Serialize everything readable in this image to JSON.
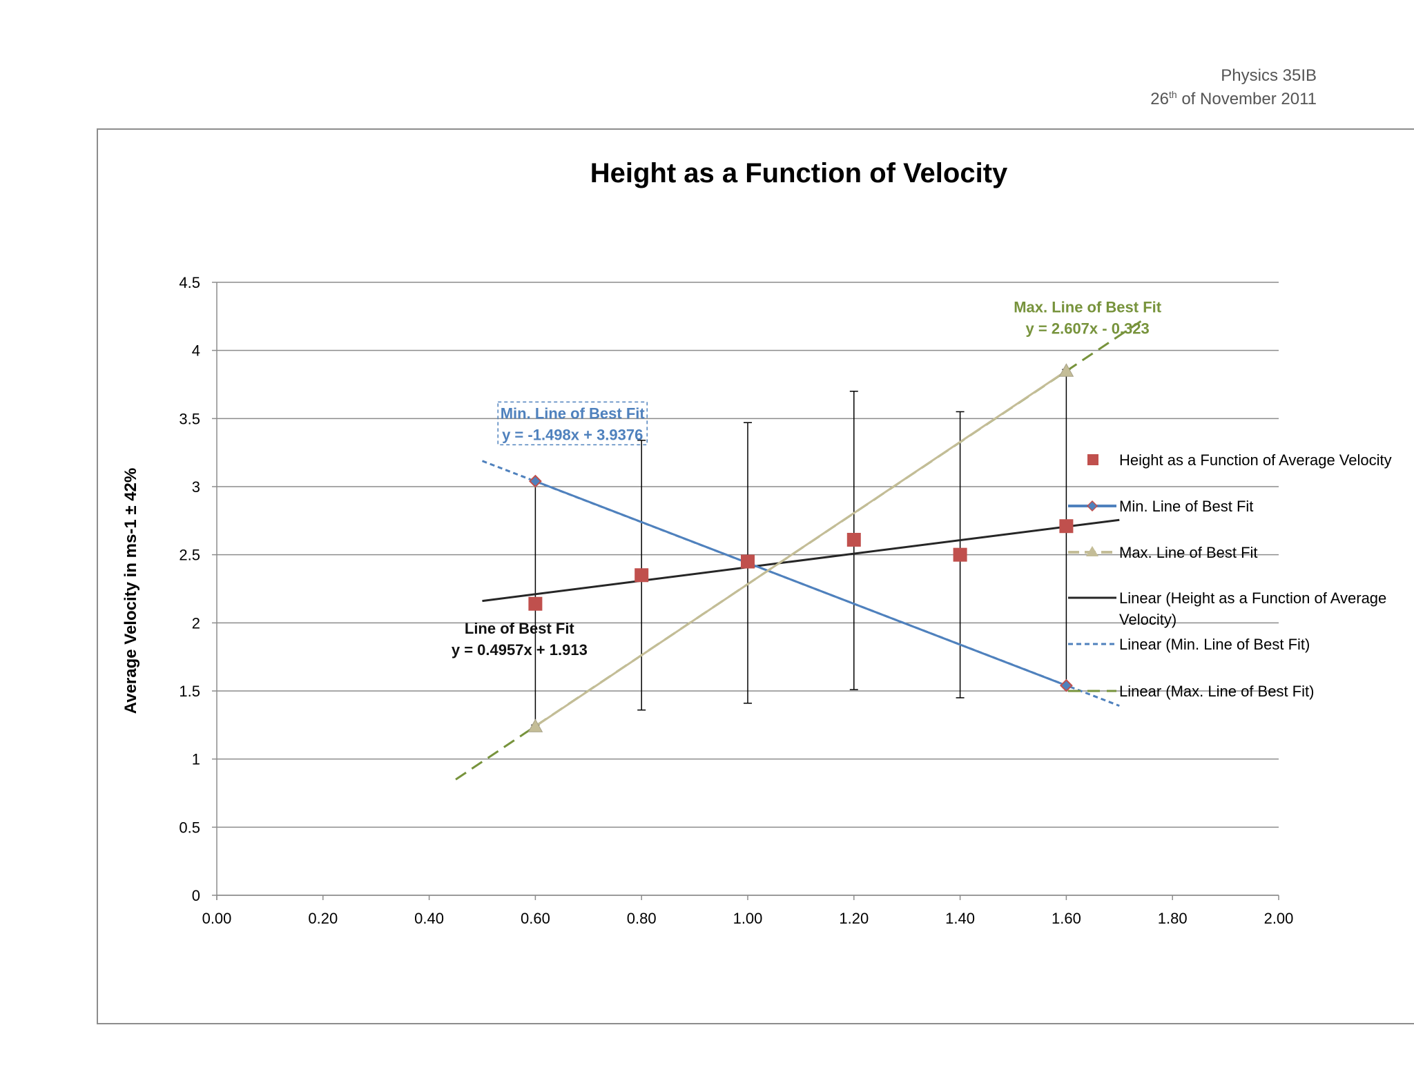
{
  "header": {
    "course": "Physics 35IB",
    "date_day": "26",
    "date_suffix": "th",
    "date_rest": " of November 2011"
  },
  "chart_data": {
    "type": "scatter",
    "title": "Height as a Function of Velocity",
    "xlabel": "",
    "ylabel": "Average Velocity in ms-1 ± 42%",
    "xlim": [
      0,
      2
    ],
    "ylim": [
      0,
      4.5
    ],
    "x_ticks": [
      0,
      0.2,
      0.4,
      0.6,
      0.8,
      1.0,
      1.2,
      1.4,
      1.6,
      1.8,
      2.0
    ],
    "x_tick_labels": [
      "0.00",
      "0.20",
      "0.40",
      "0.60",
      "0.80",
      "1.00",
      "1.20",
      "1.40",
      "1.60",
      "1.80",
      "2.00"
    ],
    "y_ticks": [
      0,
      0.5,
      1,
      1.5,
      2,
      2.5,
      3,
      3.5,
      4,
      4.5
    ],
    "y_tick_labels": [
      "0",
      "0.5",
      "1",
      "1.5",
      "2",
      "2.5",
      "3",
      "3.5",
      "4",
      "4.5"
    ],
    "grid": "horizontal",
    "legend_position": "right",
    "series": [
      {
        "name": "Height as a Function of Average Velocity",
        "kind": "markers",
        "marker": "square",
        "color": "#c0504d",
        "x": [
          0.6,
          0.8,
          1.0,
          1.2,
          1.4,
          1.6
        ],
        "y": [
          2.14,
          2.35,
          2.45,
          2.61,
          2.5,
          2.71
        ],
        "error_low": [
          1.25,
          1.36,
          1.41,
          1.51,
          1.45,
          1.55
        ],
        "error_high": [
          3.03,
          3.34,
          3.47,
          3.7,
          3.55,
          3.86
        ]
      },
      {
        "name": "Min. Line of Best Fit",
        "kind": "line-markers",
        "marker": "diamond",
        "color": "#4f81bd",
        "x": [
          0.6,
          1.6
        ],
        "y": [
          3.04,
          1.54
        ]
      },
      {
        "name": "Max. Line of Best Fit",
        "kind": "line-markers",
        "marker": "triangle",
        "color": "#c4bd97",
        "x": [
          0.6,
          1.6
        ],
        "y": [
          1.24,
          3.85
        ]
      }
    ],
    "trendlines": [
      {
        "name": "Linear (Height as a Function of Average Velocity)",
        "style": "solid",
        "color": "#262626",
        "slope": 0.4957,
        "intercept": 1.913,
        "x_range": [
          0.5,
          1.7
        ]
      },
      {
        "name": "Linear (Min. Line of Best Fit)",
        "style": "dotted",
        "color": "#4f81bd",
        "slope": -1.498,
        "intercept": 3.9376,
        "x_range": [
          0.5,
          1.7
        ]
      },
      {
        "name": "Linear (Max. Line of Best Fit)",
        "style": "dashed",
        "color": "#77933c",
        "slope": 2.607,
        "intercept": -0.323,
        "x_range": [
          0.45,
          1.75
        ]
      }
    ],
    "annotations": [
      {
        "lines": [
          "Min. Line of Best Fit",
          "y = -1.498x + 3.9376"
        ],
        "color": "#4f81bd",
        "anchor": [
          0.67,
          3.5
        ],
        "boxed": true
      },
      {
        "lines": [
          "Max. Line of Best Fit",
          "y = 2.607x - 0.323"
        ],
        "color": "#77933c",
        "anchor": [
          1.64,
          4.28
        ],
        "boxed": false
      },
      {
        "lines": [
          "Line of Best Fit",
          "y = 0.4957x + 1.913"
        ],
        "color": "#111111",
        "anchor": [
          0.57,
          1.92
        ],
        "boxed": false
      }
    ],
    "legend": [
      {
        "label": "Height as a Function of Average Velocity",
        "symbol": "square",
        "color": "#c0504d"
      },
      {
        "label": "Min. Line of Best Fit",
        "symbol": "line-diamond",
        "color": "#4f81bd"
      },
      {
        "label": "Max. Line of Best Fit",
        "symbol": "line-triangle",
        "color": "#c4bd97"
      },
      {
        "label": "Linear (Height as a Function of Average Velocity)",
        "label_lines": [
          "Linear (Height as a Function of Average",
          "Velocity)"
        ],
        "symbol": "solid",
        "color": "#262626"
      },
      {
        "label": "Linear (Min. Line of Best Fit)",
        "symbol": "dotted",
        "color": "#4f81bd"
      },
      {
        "label": "Linear (Max. Line of Best Fit)",
        "symbol": "dashed",
        "color": "#77933c"
      }
    ]
  }
}
